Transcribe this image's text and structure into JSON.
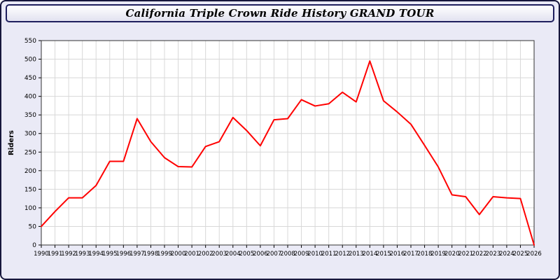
{
  "title_bar": {
    "text": "California Triple Crown Ride History GRAND TOUR"
  },
  "chart_data": {
    "type": "line",
    "title": "California Triple Crown Ride History GRAND TOUR",
    "xlabel": "",
    "ylabel": "Riders",
    "ylim": [
      0,
      550
    ],
    "ytick_step": 50,
    "grid": true,
    "grid_color": "#d8d8d8",
    "line_color": "#ff0000",
    "plot_bg": "#ffffff",
    "legend": "none",
    "categories": [
      1990,
      1991,
      1992,
      1993,
      1994,
      1995,
      1996,
      1997,
      1998,
      1999,
      2000,
      2001,
      2002,
      2003,
      2004,
      2005,
      2006,
      2007,
      2008,
      2009,
      2010,
      2011,
      2012,
      2013,
      2014,
      2015,
      2016,
      2017,
      2018,
      2019,
      2020,
      2021,
      2022,
      2023,
      2024,
      2025,
      2026
    ],
    "series": [
      {
        "name": "Riders",
        "values": [
          50,
          90,
          127,
          127,
          160,
          225,
          225,
          340,
          278,
          235,
          211,
          210,
          265,
          278,
          343,
          308,
          267,
          337,
          340,
          391,
          374,
          380,
          411,
          385,
          495,
          388,
          358,
          325,
          268,
          210,
          135,
          130,
          82,
          130,
          127,
          125,
          0
        ]
      }
    ]
  }
}
